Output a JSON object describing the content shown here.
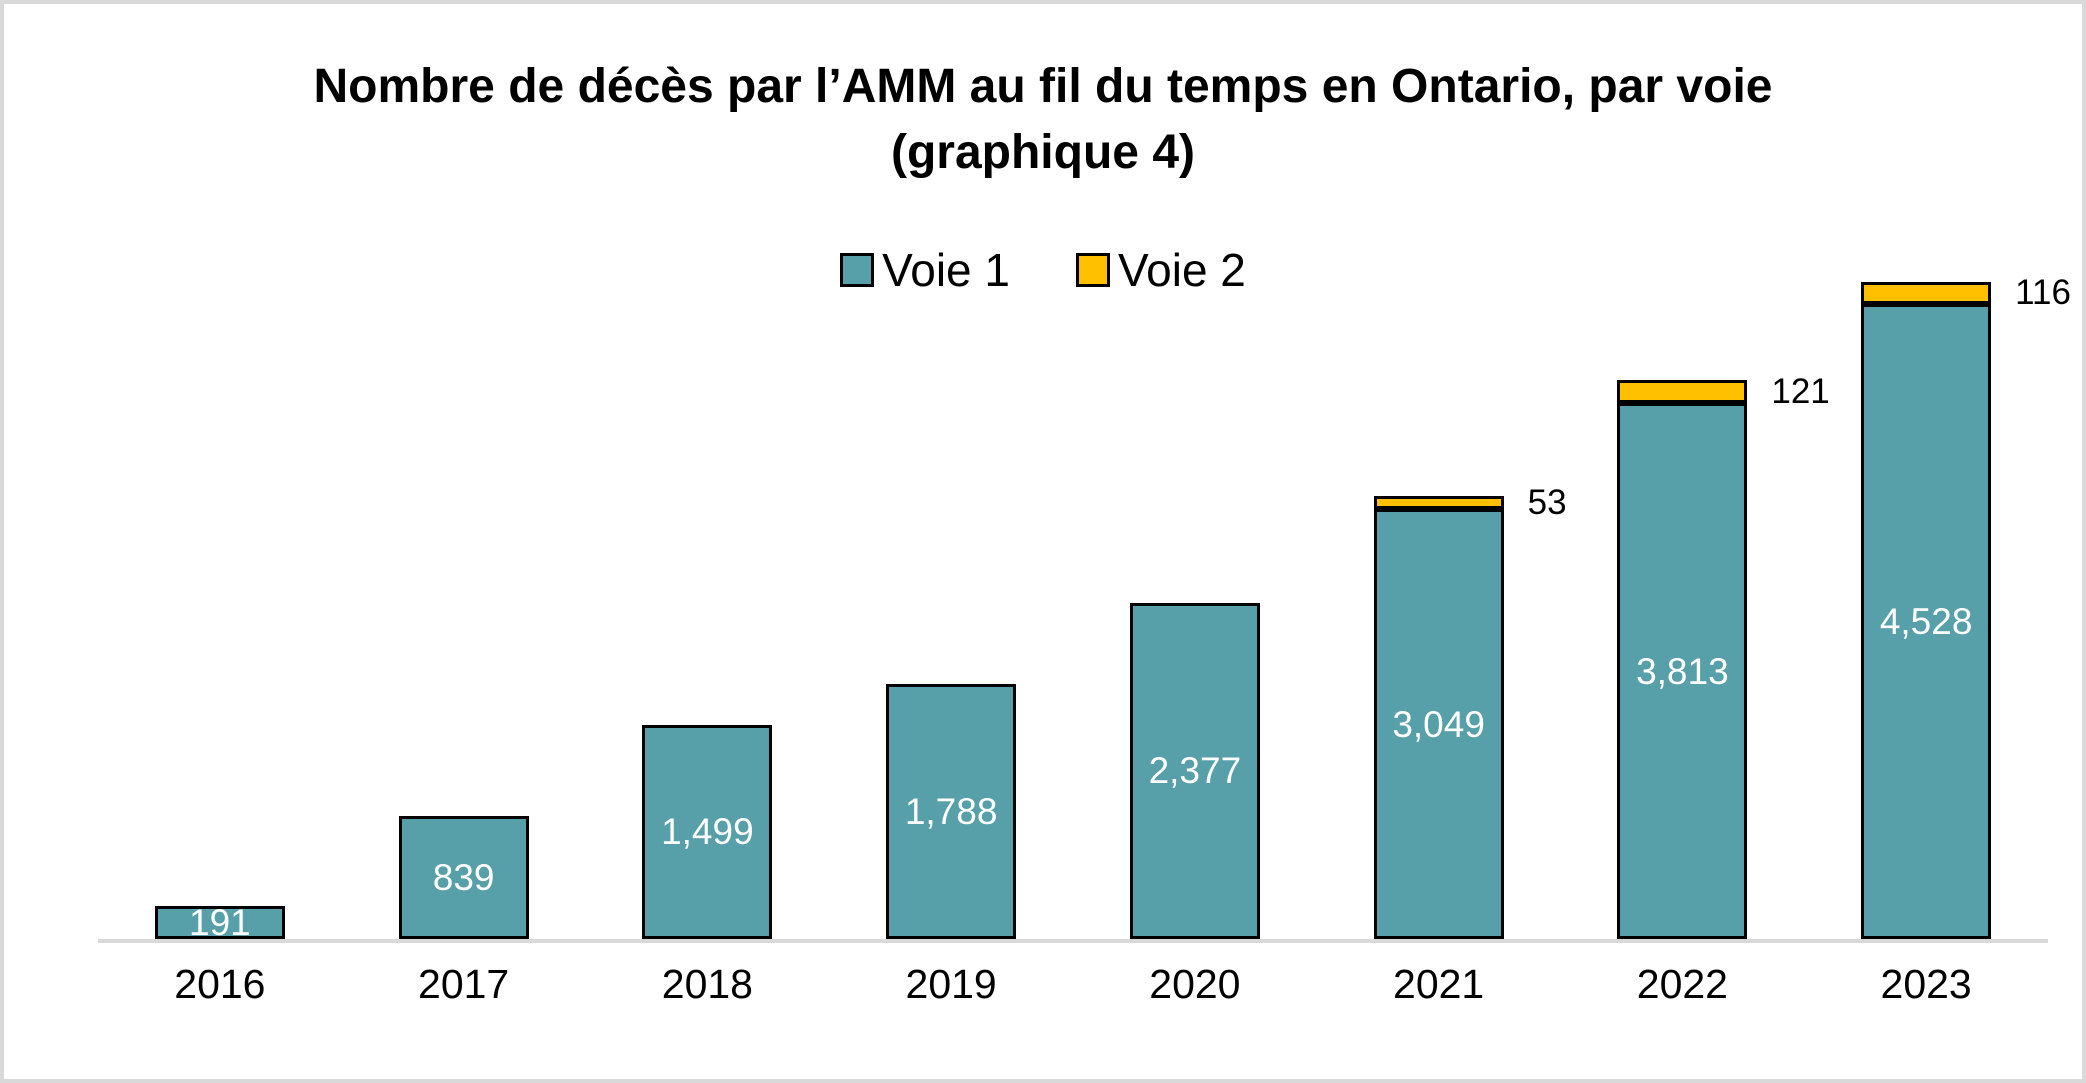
{
  "title": {
    "line1": "Nombre de décès par l’AMM au fil du temps en Ontario, par voie",
    "line2": "(graphique 4)"
  },
  "legend": [
    {
      "label": "Voie 1",
      "color": "#579FA9"
    },
    {
      "label": "Voie 2",
      "color": "#FFC000"
    }
  ],
  "colors": {
    "voie1_fill": "#579FA9",
    "voie2_fill": "#FFC000",
    "bar_border": "#000000",
    "axis_line": "#D9D9D9",
    "outer_frame": "#D9D9D9",
    "background": "#FFFFFF",
    "label_inside": "#FFFFFF",
    "label_outside": "#000000"
  },
  "chart_data": {
    "type": "bar",
    "stacked": true,
    "title": "Nombre de décès par l’AMM au fil du temps en Ontario, par voie (graphique 4)",
    "categories": [
      "2016",
      "2017",
      "2018",
      "2019",
      "2020",
      "2021",
      "2022",
      "2023"
    ],
    "series": [
      {
        "name": "Voie 1",
        "color": "#579FA9",
        "values": [
          191,
          839,
          1499,
          1788,
          2377,
          3049,
          3813,
          4528
        ],
        "labels": [
          "191",
          "839",
          "1,499",
          "1,788",
          "2,377",
          "3,049",
          "3,813",
          "4,528"
        ],
        "label_position": "inside-center",
        "label_color": "#FFFFFF"
      },
      {
        "name": "Voie 2",
        "color": "#FFC000",
        "values": [
          0,
          0,
          0,
          0,
          0,
          53,
          121,
          116
        ],
        "labels": [
          "",
          "",
          "",
          "",
          "",
          "53",
          "121",
          "116"
        ],
        "label_position": "outside-right",
        "label_color": "#000000"
      }
    ],
    "legend_position": "top-center",
    "grid": false,
    "y_axis_visible": false,
    "x_axis_line_visible": true,
    "xlabel": "",
    "ylabel": ""
  }
}
